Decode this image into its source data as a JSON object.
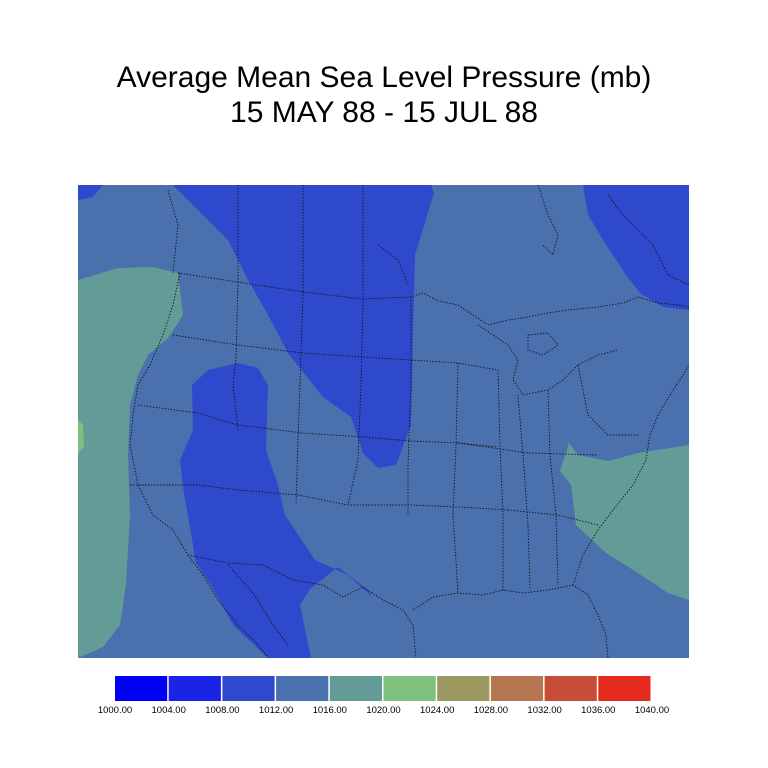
{
  "title": {
    "line1": "Average Mean Sea Level Pressure (mb)",
    "line2": "15 MAY 88 - 15 JUL 88"
  },
  "map": {
    "region": "North America (contiguous US)",
    "field": "mean sea level pressure",
    "units": "mb",
    "boundaries": "state and country outlines, dotted"
  },
  "colorbar": {
    "colors": [
      "#0000f5",
      "#1a23e6",
      "#2f49cc",
      "#4a70ae",
      "#639b97",
      "#7ec17e",
      "#9c9a60",
      "#b47550",
      "#c84d38",
      "#e52a1e"
    ],
    "labels": [
      "1000.00",
      "1004.00",
      "1008.00",
      "1012.00",
      "1016.00",
      "1020.00",
      "1024.00",
      "1028.00",
      "1032.00",
      "1036.00",
      "1040.00"
    ]
  }
}
